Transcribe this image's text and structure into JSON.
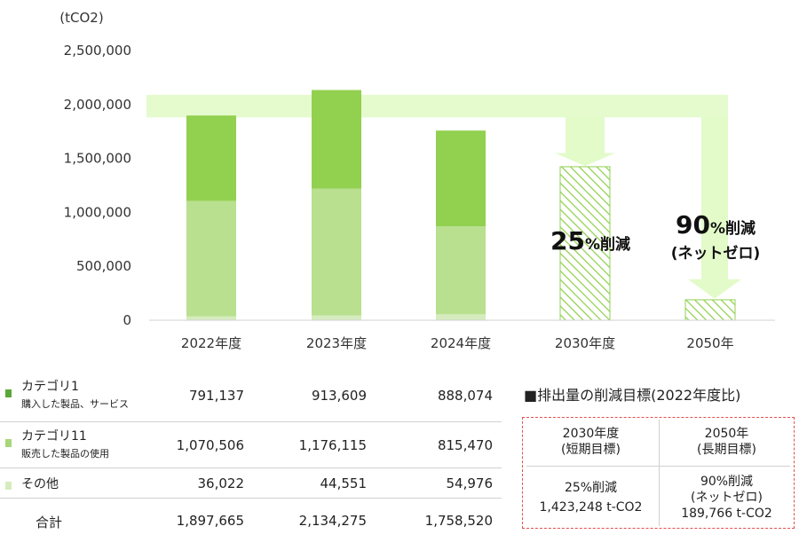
{
  "chart_data": {
    "type": "bar",
    "unit_label": "(tCO2)",
    "categories": [
      "2022年度",
      "2023年度",
      "2024年度",
      "2030年度",
      "2050年"
    ],
    "ylim": [
      0,
      2500000
    ],
    "y_ticks": [
      "2,500,000",
      "2,000,000",
      "1,500,000",
      "1,000,000",
      "500,000",
      "0"
    ],
    "y_tick_values": [
      2500000,
      2000000,
      1500000,
      1000000,
      500000,
      0
    ],
    "series": [
      {
        "name": "その他",
        "color": "#d6ecbe",
        "values": [
          36022,
          44551,
          54976,
          null,
          null
        ]
      },
      {
        "name": "カテゴリ11",
        "color": "#b8e08f",
        "values": [
          1070506,
          1176115,
          815470,
          null,
          null
        ]
      },
      {
        "name": "カテゴリ1",
        "color": "#92d050",
        "values": [
          791137,
          913609,
          888074,
          null,
          null
        ]
      }
    ],
    "targets": [
      {
        "category": "2030年度",
        "value": 1423248,
        "pattern": "hatched"
      },
      {
        "category": "2050年",
        "value": 189766,
        "pattern": "hatched"
      }
    ],
    "annotations": [
      {
        "big": "25",
        "pct": "%削減",
        "line2": ""
      },
      {
        "big": "90",
        "pct": "%削減",
        "line2": "(ネットゼロ)"
      }
    ],
    "grid": false,
    "arrow_color": "#e2fbc9"
  },
  "table": {
    "rows": [
      {
        "label1": "カテゴリ1",
        "label2": "購入した製品、サービス",
        "color": "#5aa83a",
        "values": [
          "791,137",
          "913,609",
          "888,074"
        ]
      },
      {
        "label1": "カテゴリ11",
        "label2": "販売した製品の使用",
        "color": "#a7d77a",
        "values": [
          "1,070,506",
          "1,176,115",
          "815,470"
        ]
      },
      {
        "label1": "その他",
        "label2": "",
        "color": "#d6ecbe",
        "values": [
          "36,022",
          "44,551",
          "54,976"
        ]
      }
    ],
    "total": {
      "label": "合計",
      "values": [
        "1,897,665",
        "2,134,275",
        "1,758,520"
      ]
    }
  },
  "targets_box": {
    "title": "■排出量の削減目標(2022年度比)",
    "cols": [
      {
        "head1": "2030年度",
        "head2": "(短期目標)",
        "line1": "25%削減",
        "line2": "1,423,248 t-CO2",
        "line3": ""
      },
      {
        "head1": "2050年",
        "head2": "(長期目標)",
        "line1": "90%削減",
        "line2": "(ネットゼロ)",
        "line3": "189,766 t-CO2"
      }
    ]
  }
}
